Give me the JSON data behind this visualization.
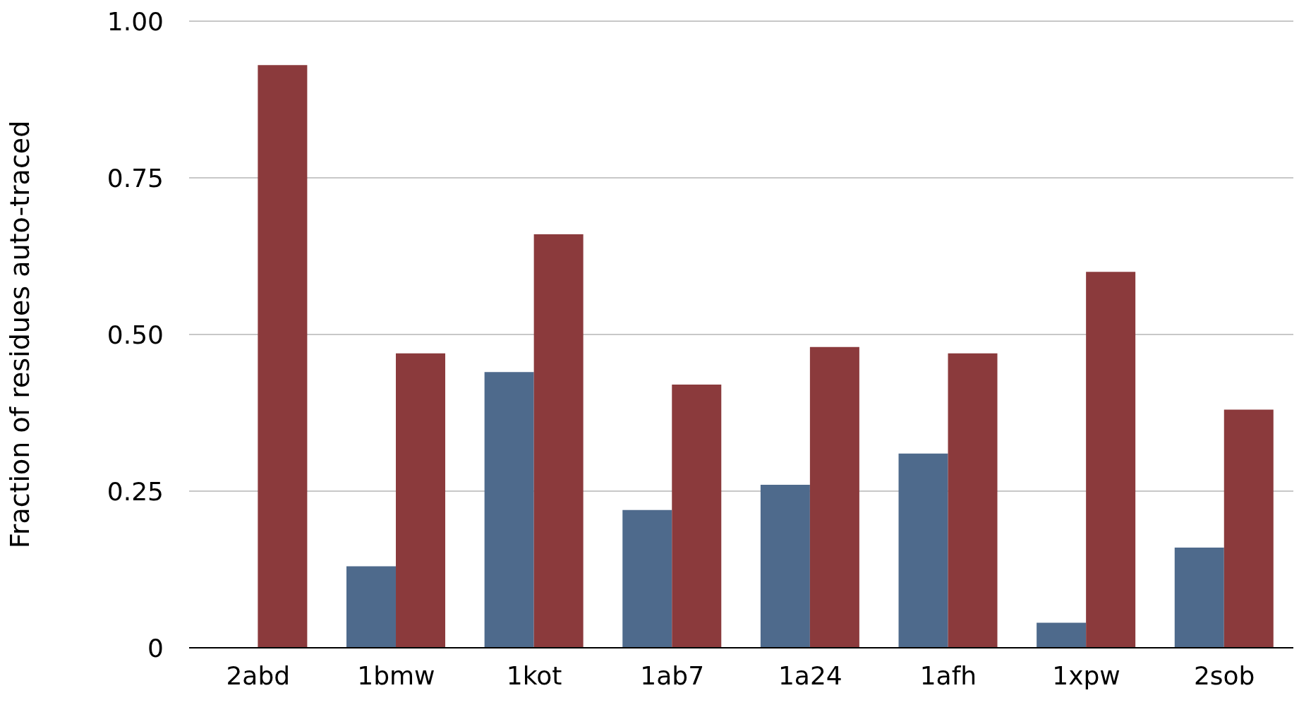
{
  "chart_data": {
    "type": "bar",
    "ylabel": "Fraction of residues auto-traced",
    "categories": [
      "2abd",
      "1bmw",
      "1kot",
      "1ab7",
      "1a24",
      "1afh",
      "1xpw",
      "2sob"
    ],
    "series": [
      {
        "color": "#4e6a8c",
        "values": [
          null,
          0.13,
          0.44,
          0.22,
          0.26,
          0.31,
          0.04,
          0.16
        ]
      },
      {
        "color": "#8b3a3c",
        "values": [
          0.93,
          0.47,
          0.66,
          0.42,
          0.48,
          0.47,
          0.6,
          0.38
        ]
      }
    ],
    "ylim": [
      0,
      1
    ],
    "yticks": [
      {
        "value": 0,
        "label": "0"
      },
      {
        "value": 0.25,
        "label": "0.25"
      },
      {
        "value": 0.5,
        "label": "0.50"
      },
      {
        "value": 0.75,
        "label": "0.75"
      },
      {
        "value": 1,
        "label": "1.00"
      }
    ],
    "grid": "y",
    "legend": false
  }
}
